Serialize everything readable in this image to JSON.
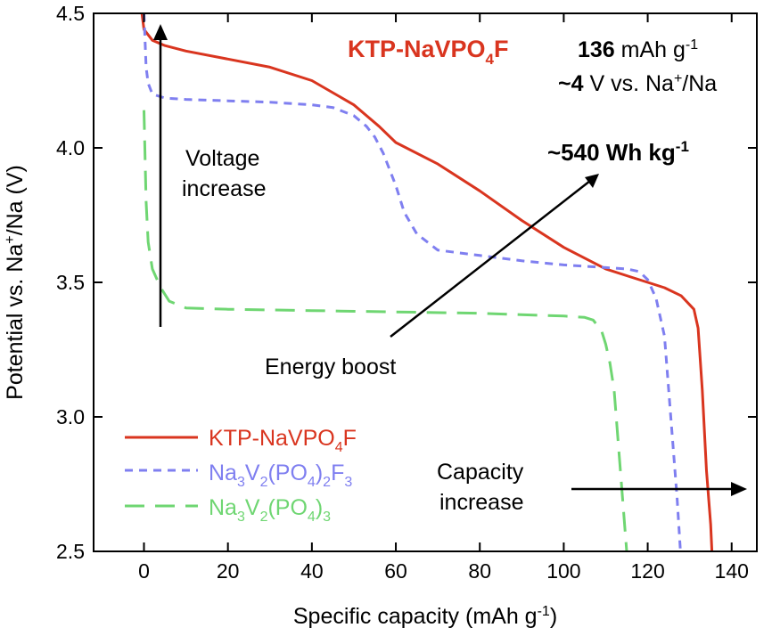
{
  "colors": {
    "ktp": "#d9351f",
    "nvpf": "#7f7ff0",
    "nvp": "#6fd672",
    "axis": "#000000"
  },
  "chart_data": {
    "type": "line",
    "xlabel": "Specific capacity (mAh g-1)",
    "ylabel": "Potential vs. Na+/Na (V)",
    "xlim": [
      -12,
      146
    ],
    "ylim": [
      2.5,
      4.5
    ],
    "xticks": [
      "0",
      "20",
      "40",
      "60",
      "80",
      "100",
      "120",
      "140"
    ],
    "yticks": [
      "2.5",
      "3.0",
      "3.5",
      "4.0",
      "4.5"
    ],
    "grid": false,
    "legend_position": "bottom-left",
    "series": [
      {
        "name": "KTP-NaVPO4F",
        "style": "solid",
        "color": "#d9351f",
        "points": [
          [
            -0.5,
            4.5
          ],
          [
            0,
            4.44
          ],
          [
            2,
            4.4
          ],
          [
            5,
            4.38
          ],
          [
            10,
            4.36
          ],
          [
            20,
            4.33
          ],
          [
            30,
            4.3
          ],
          [
            40,
            4.25
          ],
          [
            50,
            4.16
          ],
          [
            56,
            4.08
          ],
          [
            60,
            4.02
          ],
          [
            70,
            3.94
          ],
          [
            80,
            3.84
          ],
          [
            90,
            3.73
          ],
          [
            100,
            3.63
          ],
          [
            110,
            3.55
          ],
          [
            116,
            3.52
          ],
          [
            120,
            3.5
          ],
          [
            124,
            3.48
          ],
          [
            128,
            3.45
          ],
          [
            131,
            3.4
          ],
          [
            132,
            3.33
          ],
          [
            133,
            3.1
          ],
          [
            134,
            2.8
          ],
          [
            135,
            2.6
          ],
          [
            135.3,
            2.5
          ]
        ]
      },
      {
        "name": "Na3V2(PO4)2F3",
        "style": "dashed",
        "color": "#7f7ff0",
        "points": [
          [
            0,
            4.5
          ],
          [
            0.5,
            4.3
          ],
          [
            1,
            4.24
          ],
          [
            2,
            4.2
          ],
          [
            5,
            4.185
          ],
          [
            10,
            4.18
          ],
          [
            20,
            4.175
          ],
          [
            30,
            4.17
          ],
          [
            40,
            4.16
          ],
          [
            45,
            4.15
          ],
          [
            50,
            4.12
          ],
          [
            53,
            4.08
          ],
          [
            55,
            4.04
          ],
          [
            57,
            3.98
          ],
          [
            60,
            3.86
          ],
          [
            62,
            3.76
          ],
          [
            65,
            3.68
          ],
          [
            70,
            3.62
          ],
          [
            80,
            3.6
          ],
          [
            90,
            3.58
          ],
          [
            100,
            3.565
          ],
          [
            110,
            3.555
          ],
          [
            115,
            3.55
          ],
          [
            118,
            3.54
          ],
          [
            120,
            3.51
          ],
          [
            122,
            3.44
          ],
          [
            124,
            3.3
          ],
          [
            125,
            3.1
          ],
          [
            126,
            2.9
          ],
          [
            127,
            2.7
          ],
          [
            127.8,
            2.5
          ]
        ]
      },
      {
        "name": "Na3V2(PO4)3",
        "style": "dashed",
        "color": "#6fd672",
        "points": [
          [
            0,
            4.14
          ],
          [
            0.5,
            3.8
          ],
          [
            1,
            3.65
          ],
          [
            2,
            3.55
          ],
          [
            4,
            3.48
          ],
          [
            6,
            3.43
          ],
          [
            10,
            3.405
          ],
          [
            20,
            3.4
          ],
          [
            40,
            3.395
          ],
          [
            60,
            3.39
          ],
          [
            80,
            3.385
          ],
          [
            100,
            3.375
          ],
          [
            105,
            3.37
          ],
          [
            107,
            3.36
          ],
          [
            109,
            3.32
          ],
          [
            110,
            3.27
          ],
          [
            111,
            3.2
          ],
          [
            112,
            3.1
          ],
          [
            113,
            2.9
          ],
          [
            114,
            2.7
          ],
          [
            115,
            2.5
          ]
        ]
      }
    ],
    "annotations": {
      "title": "KTP-NaVPO4F",
      "capacity_value": "136",
      "capacity_unit": "mAh g-1",
      "voltage_value": "~4",
      "voltage_unit": "V vs. Na+/Na",
      "energy": "~540 Wh kg-1",
      "voltage_increase_1": "Voltage",
      "voltage_increase_2": "increase",
      "energy_boost": "Energy boost",
      "capacity_increase_1": "Capacity",
      "capacity_increase_2": "increase"
    }
  }
}
